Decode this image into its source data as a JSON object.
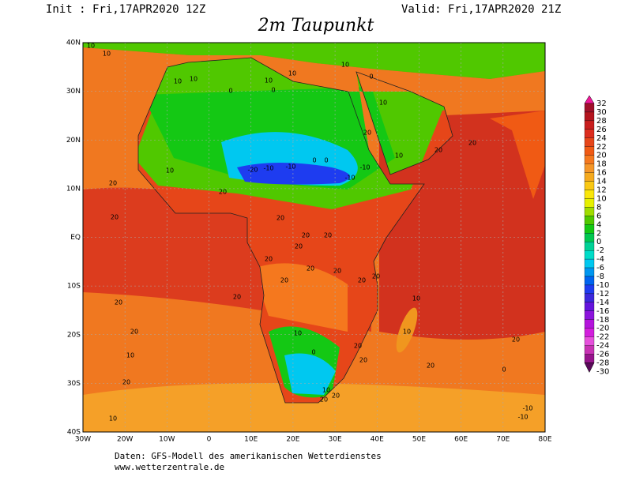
{
  "header": {
    "init": "Init : Fri,17APR2020 12Z",
    "valid": "Valid: Fri,17APR2020 21Z",
    "title": "2m Taupunkt"
  },
  "map": {
    "x_labels": [
      "30W",
      "20W",
      "10W",
      "0",
      "10E",
      "20E",
      "30E",
      "40E",
      "50E",
      "60E",
      "70E",
      "80E"
    ],
    "y_labels": [
      "40N",
      "30N",
      "20N",
      "10N",
      "EQ",
      "10S",
      "20S",
      "30S",
      "40S"
    ],
    "contour_labels": [
      10,
      10,
      10,
      10,
      0,
      10,
      10,
      0,
      10,
      0,
      10,
      20,
      -20,
      -10,
      -10,
      0,
      0,
      -10,
      -10,
      20,
      20,
      10,
      20,
      20,
      20,
      20,
      20,
      20,
      20,
      20,
      20,
      20,
      20,
      10,
      20,
      20,
      20,
      10,
      10,
      0,
      10,
      20,
      20,
      20,
      20,
      10,
      20,
      20,
      10,
      -10,
      -10,
      0,
      10,
      20,
      20,
      20
    ]
  },
  "colorbar": {
    "levels": [
      32,
      30,
      28,
      26,
      24,
      22,
      20,
      18,
      16,
      14,
      12,
      10,
      8,
      6,
      4,
      2,
      0,
      -2,
      -4,
      -6,
      -8,
      -10,
      -12,
      -14,
      -16,
      -18,
      -20,
      -22,
      -24,
      -26,
      -28,
      -30
    ],
    "colors": [
      "#f0189a",
      "#a0102a",
      "#b4141e",
      "#c81e1e",
      "#dc2d1e",
      "#e64619",
      "#f05a14",
      "#f5781e",
      "#f59628",
      "#f5aa1e",
      "#fac814",
      "#fae60a",
      "#e6f000",
      "#a0dc00",
      "#50c800",
      "#14c814",
      "#00c850",
      "#00d296",
      "#00dcc8",
      "#00c8f0",
      "#0096f0",
      "#0064f0",
      "#1e3cf0",
      "#3c28dc",
      "#6414dc",
      "#8c14dc",
      "#b414dc",
      "#d21edc",
      "#e650dc",
      "#c832b4",
      "#96148c",
      "#5a0a5a"
    ]
  },
  "footer": {
    "source": "Daten: GFS-Modell des amerikanischen Wetterdienstes",
    "url": "www.wetterzentrale.de"
  }
}
